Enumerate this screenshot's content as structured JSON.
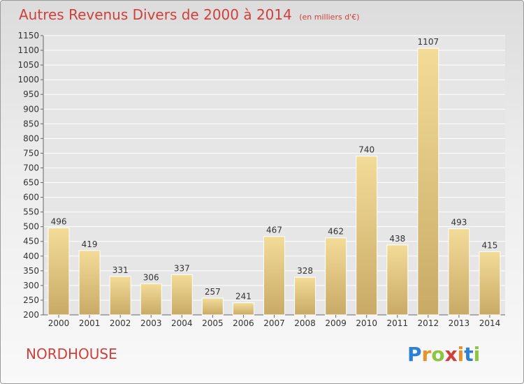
{
  "title": "Autres Revenus Divers de 2000 à 2014",
  "subtitle": "(en milliers d'€)",
  "location": "NORDHOUSE",
  "logo_text": "Proxiti",
  "colors": {
    "title": "#d0403a",
    "bar_light": "#f3dc98",
    "bar_dark": "#c8aa66",
    "grid": "#ffffff"
  },
  "chart_data": {
    "type": "bar",
    "title": "Autres Revenus Divers de 2000 à 2014",
    "subtitle": "(en milliers d'€)",
    "categories": [
      "2000",
      "2001",
      "2002",
      "2003",
      "2004",
      "2005",
      "2006",
      "2007",
      "2008",
      "2009",
      "2010",
      "2011",
      "2012",
      "2013",
      "2014"
    ],
    "values": [
      496,
      419,
      331,
      306,
      337,
      257,
      241,
      467,
      328,
      462,
      740,
      438,
      1107,
      493,
      415
    ],
    "ylim": [
      200,
      1150
    ],
    "yticks": [
      200,
      250,
      300,
      350,
      400,
      450,
      500,
      550,
      600,
      650,
      700,
      750,
      800,
      850,
      900,
      950,
      1000,
      1050,
      1100,
      1150
    ],
    "grid": true
  }
}
